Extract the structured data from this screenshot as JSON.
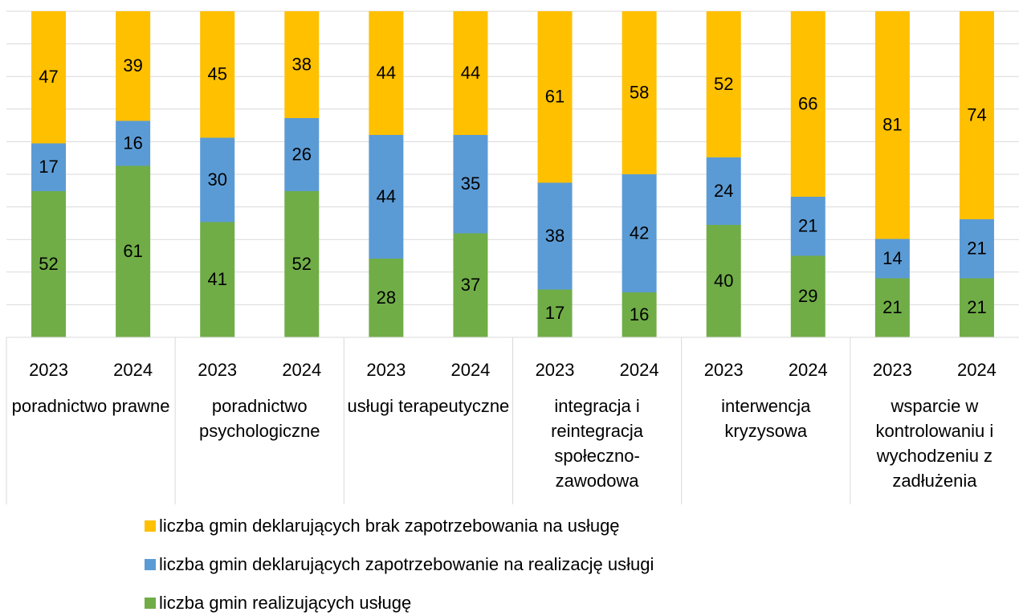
{
  "chart_data": {
    "type": "stacked_bar",
    "groups": [
      "poradnictwo prawne",
      "poradnictwo psychologiczne",
      "usługi terapeutyczne",
      "integracja i reintegracja społeczno-zawodowa",
      "interwencja kryzysowa",
      "wsparcie w kontrolowaniu i wychodzeniu z zadłużenia"
    ],
    "categories": [
      "2023",
      "2024",
      "2023",
      "2024",
      "2023",
      "2024",
      "2023",
      "2024",
      "2023",
      "2024",
      "2023",
      "2024"
    ],
    "series": [
      {
        "name": "liczba gmin realizujących usługę",
        "color": "#70AD47",
        "values": [
          52,
          61,
          41,
          52,
          28,
          37,
          17,
          16,
          40,
          29,
          21,
          21
        ]
      },
      {
        "name": "liczba gmin deklarujących zapotrzebowanie na realizację usługi",
        "color": "#5B9BD5",
        "values": [
          17,
          16,
          30,
          26,
          44,
          35,
          38,
          42,
          24,
          21,
          14,
          21
        ]
      },
      {
        "name": "liczba gmin deklarujących brak zapotrzebowania na usługę",
        "color": "#FFC000",
        "values": [
          47,
          39,
          45,
          38,
          44,
          44,
          61,
          58,
          52,
          66,
          81,
          74
        ]
      }
    ],
    "ylim": [
      0,
      116
    ],
    "yticks": [
      0,
      11.6,
      23.2,
      34.8,
      46.4,
      58,
      69.6,
      81.2,
      92.8,
      104.4,
      116
    ],
    "grid": true
  }
}
